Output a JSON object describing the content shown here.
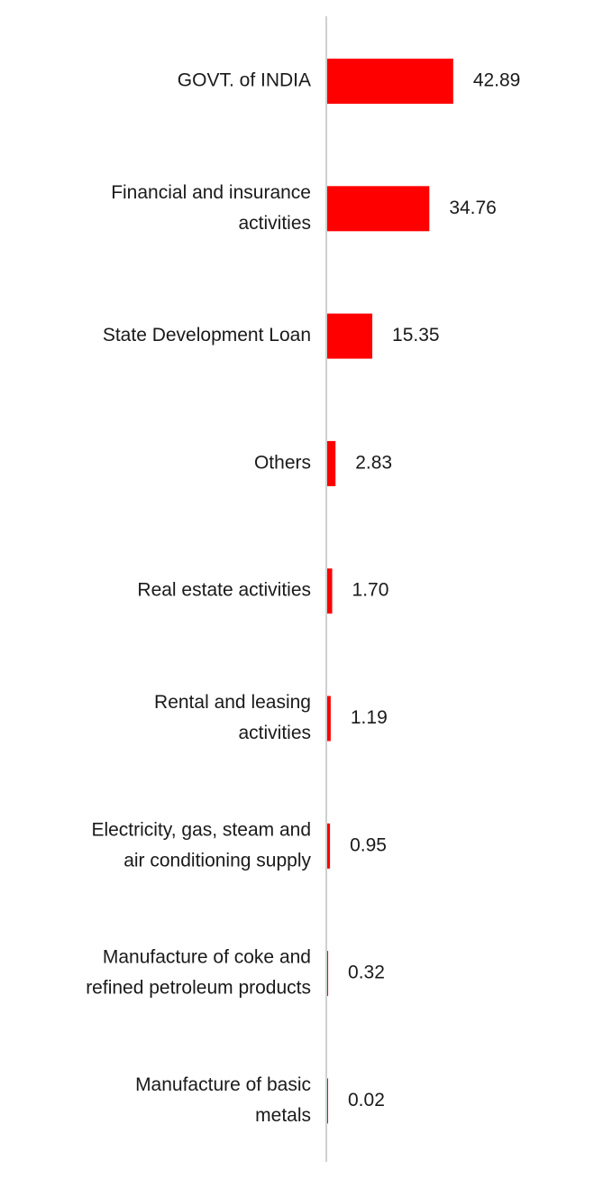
{
  "chart_data": {
    "type": "bar",
    "orientation": "horizontal",
    "categories": [
      [
        "GOVT. of INDIA"
      ],
      [
        "Financial and insurance",
        "activities"
      ],
      [
        "State Development Loan"
      ],
      [
        "Others"
      ],
      [
        "Real estate activities"
      ],
      [
        "Rental and leasing",
        "activities"
      ],
      [
        "Electricity, gas, steam and",
        "air conditioning supply"
      ],
      [
        "Manufacture of coke and",
        "refined petroleum products"
      ],
      [
        "Manufacture of basic",
        "metals"
      ]
    ],
    "values": [
      42.89,
      34.76,
      15.35,
      2.83,
      1.7,
      1.19,
      0.95,
      0.32,
      0.02
    ],
    "value_labels": [
      "42.89",
      "34.76",
      "15.35",
      "2.83",
      "1.70",
      "1.19",
      "0.95",
      "0.32",
      "0.02"
    ],
    "xlim": [
      0,
      50
    ],
    "grid": false,
    "legend": "none",
    "colors": {
      "bar": "#ff0000",
      "axis": "#d0d0d0",
      "text": "#1a1a1a"
    }
  }
}
